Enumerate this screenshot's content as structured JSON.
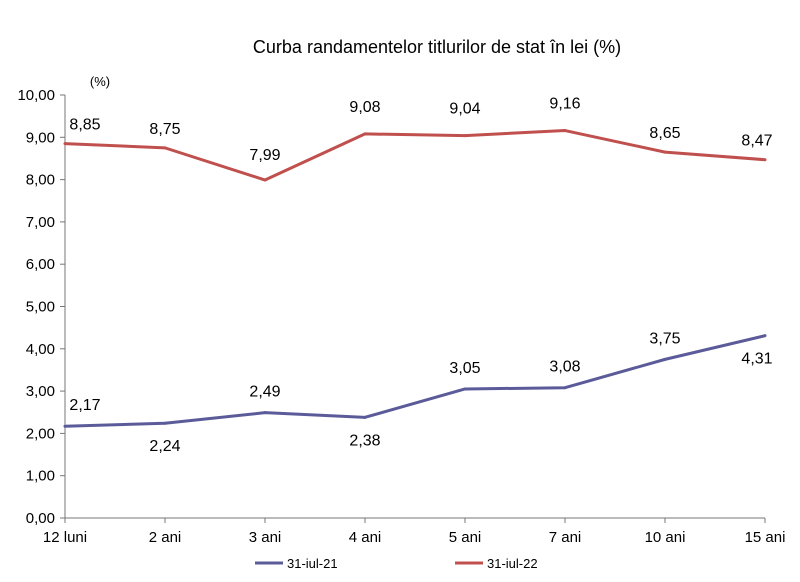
{
  "chart_data": {
    "type": "line",
    "title": "Curba randamentelor titlurilor de stat în lei (%)",
    "unit_label": "(%)",
    "xlabel": "",
    "ylabel": "",
    "ylim": [
      0,
      10
    ],
    "yticks": [
      "0,00",
      "1,00",
      "2,00",
      "3,00",
      "4,00",
      "5,00",
      "6,00",
      "7,00",
      "8,00",
      "9,00",
      "10,00"
    ],
    "categories": [
      "12 luni",
      "2 ani",
      "3 ani",
      "4 ani",
      "5 ani",
      "7 ani",
      "10 ani",
      "15 ani"
    ],
    "grid": false,
    "legend_position": "bottom",
    "series": [
      {
        "name": "31-iul-21",
        "color": "#5b5b9a",
        "values": [
          2.17,
          2.24,
          2.49,
          2.38,
          3.05,
          3.08,
          3.75,
          4.31
        ],
        "labels": [
          "2,17",
          "2,24",
          "2,49",
          "2,38",
          "3,05",
          "3,08",
          "3,75",
          "4,31"
        ]
      },
      {
        "name": "31-iul-22",
        "color": "#c0504d",
        "values": [
          8.85,
          8.75,
          7.99,
          9.08,
          9.04,
          9.16,
          8.65,
          8.47
        ],
        "labels": [
          "8,85",
          "8,75",
          "7,99",
          "9,08",
          "9,04",
          "9,16",
          "8,65",
          "8,47"
        ]
      }
    ]
  }
}
